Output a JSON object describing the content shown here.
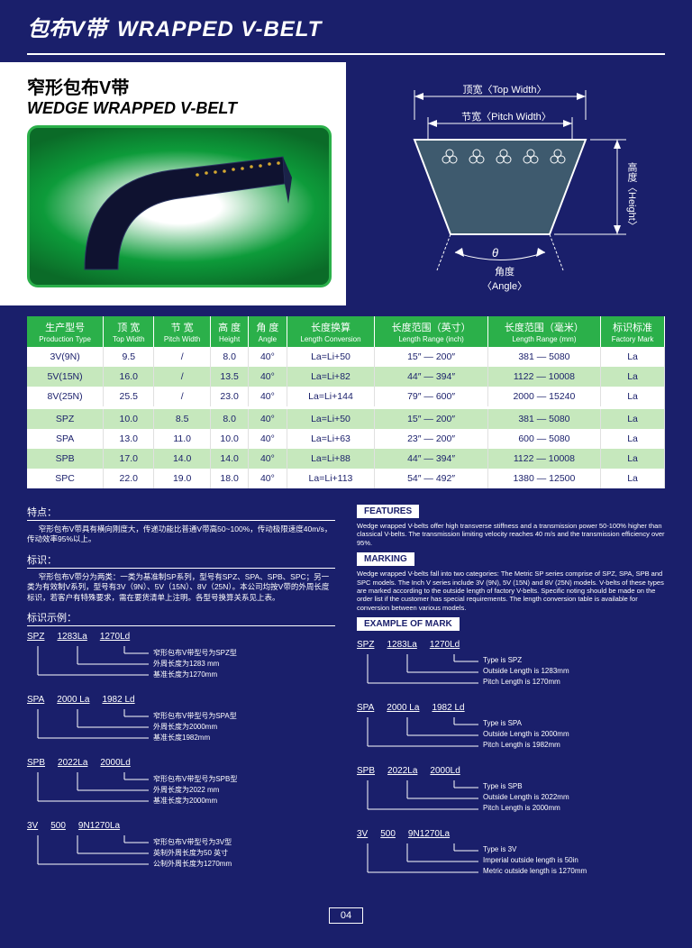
{
  "header": {
    "cn": "包布V带",
    "en": "WRAPPED V-BELT"
  },
  "subtitle": {
    "cn": "窄形包布V带",
    "en": "WEDGE WRAPPED V-BELT"
  },
  "diagram": {
    "top_width_cn": "顶宽",
    "top_width_en": "Top Width",
    "pitch_width_cn": "节宽",
    "pitch_width_en": "Pitch Width",
    "height_cn": "高度",
    "height_en": "Height",
    "angle_cn": "角度",
    "angle_en": "Angle",
    "theta": "θ",
    "belt_fill": "#3e5a6e",
    "line_color": "#ffffff"
  },
  "table": {
    "headers": [
      {
        "cn": "生产型号",
        "en": "Production Type"
      },
      {
        "cn": "顶 宽",
        "en": "Top Width"
      },
      {
        "cn": "节 宽",
        "en": "Pitch Width"
      },
      {
        "cn": "高 度",
        "en": "Height"
      },
      {
        "cn": "角 度",
        "en": "Angle"
      },
      {
        "cn": "长度换算",
        "en": "Length Conversion"
      },
      {
        "cn": "长度范围（英寸）",
        "en": "Length Range (inch)"
      },
      {
        "cn": "长度范围（毫米）",
        "en": "Length Range (mm)"
      },
      {
        "cn": "标识标准",
        "en": "Factory Mark"
      }
    ],
    "rows": [
      [
        "3V(9N)",
        "9.5",
        "/",
        "8.0",
        "40°",
        "La=Li+50",
        "15″ — 200″",
        "381 — 5080",
        "La"
      ],
      [
        "5V(15N)",
        "16.0",
        "/",
        "13.5",
        "40°",
        "La=Li+82",
        "44″ — 394″",
        "1122 — 10008",
        "La"
      ],
      [
        "8V(25N)",
        "25.5",
        "/",
        "23.0",
        "40°",
        "La=Li+144",
        "79″ — 600″",
        "2000 — 15240",
        "La"
      ],
      [
        "SPZ",
        "10.0",
        "8.5",
        "8.0",
        "40°",
        "La=Li+50",
        "15″ — 200″",
        "381 — 5080",
        "La"
      ],
      [
        "SPA",
        "13.0",
        "11.0",
        "10.0",
        "40°",
        "La=Li+63",
        "23″ — 200″",
        "600 — 5080",
        "La"
      ],
      [
        "SPB",
        "17.0",
        "14.0",
        "14.0",
        "40°",
        "La=Li+88",
        "44″ — 394″",
        "1122 — 10008",
        "La"
      ],
      [
        "SPC",
        "22.0",
        "19.0",
        "18.0",
        "40°",
        "La=Li+113",
        "54″ — 492″",
        "1380 — 12500",
        "La"
      ]
    ],
    "header_bg": "#2bb04a",
    "row_odd_bg": "#ffffff",
    "row_even_bg": "#c6e8bd"
  },
  "features_cn": {
    "title1": "特点：",
    "text1": "窄形包布V带具有横向刚度大，传递功能比普通V带高50~100%，传动极限速度40m/s，传动效率95%以上。",
    "title2": "标识：",
    "text2": "窄形包布V带分为两类：一类为基准制SP系列，型号有SPZ、SPA、SPB、SPC；另一类为有效制V系列，型号有3V（9N）、5V（15N）、8V（25N）。本公司均按V带的外周长度标识，若客户有特殊要求，需在要货清单上注明。各型号换算关系见上表。",
    "title3": "标识示例："
  },
  "features_en": {
    "title1": "FEATURES",
    "text1": "Wedge wrapped V-belts offer high transverse stiffness and a transmission power 50-100% higher than classical V-belts. The transmission limiting velocity reaches 40 m/s and the transmission efficiency over 95%.",
    "title2": "MARKING",
    "text2": "Wedge wrapped V-belts fall into two categories: The Metric SP series comprise of SPZ, SPA, SPB and SPC models. The Inch V series include 3V (9N), 5V (15N) and 8V (25N) models. V-belts of these types are marked according to the outside length of factory V-belts. Specific noting should be made on the order list if the customer has special requirements. The length conversion table is available for conversion between various models.",
    "title3": "EXAMPLE OF MARK"
  },
  "marks_cn": [
    {
      "codes": [
        "SPZ",
        "1283La",
        "1270Ld"
      ],
      "lines": [
        "基准长度为1270mm",
        "外周长度为1283 mm",
        "窄形包布V带型号为SPZ型"
      ]
    },
    {
      "codes": [
        "SPA",
        "2000 La",
        "1982 Ld"
      ],
      "lines": [
        "基准长度1982mm",
        "外周长度为2000mm",
        "窄形包布V带型号为SPA型"
      ]
    },
    {
      "codes": [
        "SPB",
        "2022La",
        "2000Ld"
      ],
      "lines": [
        "基准长度为2000mm",
        "外周长度为2022 mm",
        "窄形包布V带型号为SPB型"
      ]
    },
    {
      "codes": [
        "3V",
        "500",
        "9N1270La"
      ],
      "lines": [
        "公制外周长度为1270mm",
        "英制外周长度为50 英寸",
        "窄形包布V带型号为3V型"
      ]
    }
  ],
  "marks_en": [
    {
      "codes": [
        "SPZ",
        "1283La",
        "1270Ld"
      ],
      "lines": [
        "Pitch Length is 1270mm",
        "Outside Length is 1283mm",
        "Type is SPZ"
      ]
    },
    {
      "codes": [
        "SPA",
        "2000 La",
        "1982 Ld"
      ],
      "lines": [
        "Pitch Length is 1982mm",
        "Outside Length is 2000mm",
        "Type is SPA"
      ]
    },
    {
      "codes": [
        "SPB",
        "2022La",
        "2000Ld"
      ],
      "lines": [
        "Pitch Length is 2000mm",
        "Outside Length is 2022mm",
        "Type is SPB"
      ]
    },
    {
      "codes": [
        "3V",
        "500",
        "9N1270La"
      ],
      "lines": [
        "Metric outside length is 1270mm",
        "Imperial outside length is 50in",
        "Type is 3V"
      ]
    }
  ],
  "page_number": "04"
}
